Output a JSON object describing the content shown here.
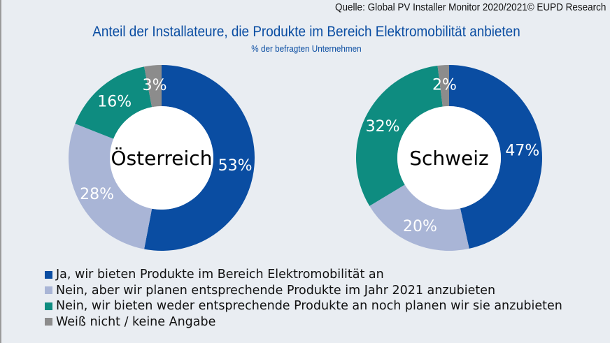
{
  "source": "Quelle: Global PV Installer Monitor 2020/2021© EUPD Research",
  "title": "Anteil der Installateure, die Produkte im Bereich Elektromobilität anbieten",
  "subtitle": "% der befragten Unternehmen",
  "chart_data": [
    {
      "type": "pie",
      "variant": "donut",
      "center_label": "Österreich",
      "categories": [
        "Ja, wir bieten Produkte im Bereich Elektromobilität an",
        "Nein, aber wir planen entsprechende Produkte im Jahr 2021 anzubieten",
        "Nein, wir bieten weder entsprechende Produkte an noch planen wir sie anzubieten",
        "Weiß nicht / keine Angabe"
      ],
      "values": [
        53,
        28,
        16,
        3
      ],
      "labels": [
        "53%",
        "28%",
        "16%",
        "3%"
      ]
    },
    {
      "type": "pie",
      "variant": "donut",
      "center_label": "Schweiz",
      "categories": [
        "Ja, wir bieten Produkte im Bereich Elektromobilität an",
        "Nein, aber wir planen entsprechende Produkte im Jahr 2021 anzubieten",
        "Nein, wir bieten weder entsprechende Produkte an noch planen wir sie anzubieten",
        "Weiß nicht / keine Angabe"
      ],
      "values": [
        47,
        20,
        32,
        2
      ],
      "labels": [
        "47%",
        "20%",
        "32%",
        "2%"
      ]
    }
  ],
  "legend": {
    "placement": "bottom-left",
    "items": [
      {
        "label": "Ja, wir bieten Produkte im Bereich Elektromobilität an",
        "color": "#0a4da2"
      },
      {
        "label": "Nein, aber wir planen entsprechende Produkte im Jahr 2021 anzubieten",
        "color": "#a9b5d6"
      },
      {
        "label": "Nein, wir bieten weder entsprechende Produkte an noch planen wir sie anzubieten",
        "color": "#0e8c80"
      },
      {
        "label": "Weiß nicht / keine Angabe",
        "color": "#8c8c8c"
      }
    ]
  },
  "label_colors": [
    "#ffffff",
    "#ffffff",
    "#ffffff",
    "#ffffff"
  ]
}
